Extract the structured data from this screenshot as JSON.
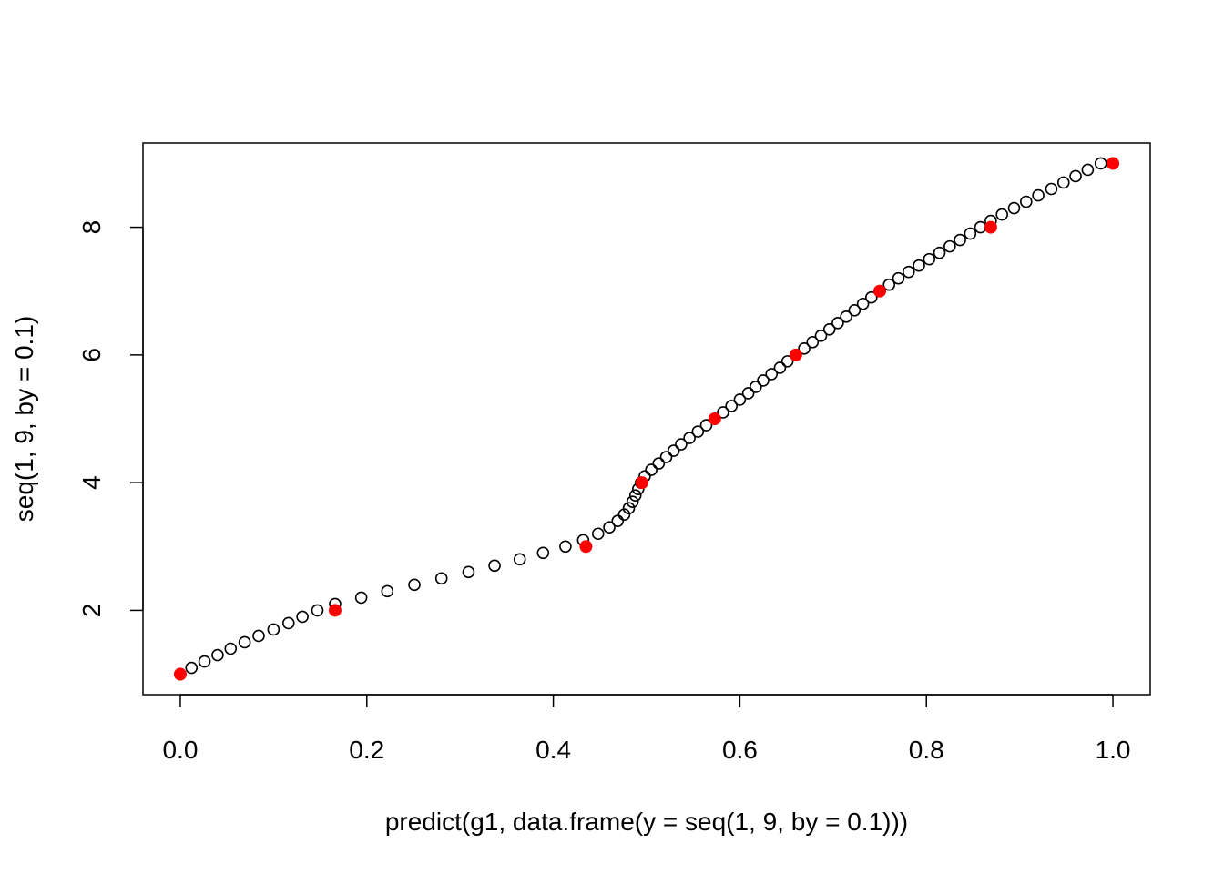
{
  "chart_data": {
    "type": "scatter",
    "title": "",
    "xlabel": "predict(g1, data.frame(y = seq(1, 9, by = 0.1)))",
    "ylabel": "seq(1, 9, by = 0.1)",
    "xlim": [
      -0.04,
      1.04
    ],
    "ylim": [
      0.68,
      9.32
    ],
    "x_ticks": [
      {
        "value": 0.0,
        "label": "0.0"
      },
      {
        "value": 0.2,
        "label": "0.2"
      },
      {
        "value": 0.4,
        "label": "0.4"
      },
      {
        "value": 0.6,
        "label": "0.6"
      },
      {
        "value": 0.8,
        "label": "0.8"
      },
      {
        "value": 1.0,
        "label": "1.0"
      }
    ],
    "y_ticks": [
      {
        "value": 2,
        "label": "2"
      },
      {
        "value": 4,
        "label": "4"
      },
      {
        "value": 6,
        "label": "6"
      },
      {
        "value": 8,
        "label": "8"
      }
    ],
    "grid": false,
    "series": [
      {
        "marker": "open-circle",
        "color": "#000000",
        "x": [
          0.0,
          0.012,
          0.026,
          0.04,
          0.054,
          0.069,
          0.084,
          0.1,
          0.116,
          0.131,
          0.147,
          0.166,
          0.194,
          0.222,
          0.251,
          0.28,
          0.309,
          0.337,
          0.364,
          0.389,
          0.413,
          0.432,
          0.448,
          0.46,
          0.469,
          0.476,
          0.481,
          0.485,
          0.488,
          0.491,
          0.494,
          0.498,
          0.505,
          0.513,
          0.521,
          0.529,
          0.537,
          0.546,
          0.555,
          0.564,
          0.573,
          0.582,
          0.591,
          0.6,
          0.609,
          0.617,
          0.625,
          0.634,
          0.643,
          0.651,
          0.66,
          0.669,
          0.678,
          0.687,
          0.696,
          0.705,
          0.714,
          0.723,
          0.732,
          0.741,
          0.75,
          0.76,
          0.77,
          0.781,
          0.792,
          0.803,
          0.814,
          0.825,
          0.836,
          0.847,
          0.858,
          0.869,
          0.881,
          0.894,
          0.907,
          0.92,
          0.934,
          0.947,
          0.96,
          0.973,
          0.987,
          1.0
        ],
        "y": [
          1.0,
          1.1,
          1.2,
          1.3,
          1.4,
          1.5,
          1.6,
          1.7,
          1.8,
          1.9,
          2.0,
          2.1,
          2.2,
          2.3,
          2.4,
          2.5,
          2.6,
          2.7,
          2.8,
          2.9,
          3.0,
          3.1,
          3.2,
          3.3,
          3.4,
          3.5,
          3.6,
          3.7,
          3.8,
          3.9,
          4.0,
          4.1,
          4.2,
          4.3,
          4.4,
          4.5,
          4.6,
          4.7,
          4.8,
          4.9,
          5.0,
          5.1,
          5.2,
          5.3,
          5.4,
          5.5,
          5.6,
          5.7,
          5.8,
          5.9,
          6.0,
          6.1,
          6.2,
          6.3,
          6.4,
          6.5,
          6.6,
          6.7,
          6.8,
          6.9,
          7.0,
          7.1,
          7.2,
          7.3,
          7.4,
          7.5,
          7.6,
          7.7,
          7.8,
          7.9,
          8.0,
          8.1,
          8.2,
          8.3,
          8.4,
          8.5,
          8.6,
          8.7,
          8.8,
          8.9,
          9.0,
          9.0
        ]
      },
      {
        "marker": "filled-circle",
        "color": "#ff0000",
        "x": [
          0.0,
          0.166,
          0.435,
          0.495,
          0.573,
          0.66,
          0.75,
          0.869,
          1.0
        ],
        "y": [
          1,
          2,
          3,
          4,
          5,
          6,
          7,
          8,
          9
        ]
      }
    ]
  }
}
